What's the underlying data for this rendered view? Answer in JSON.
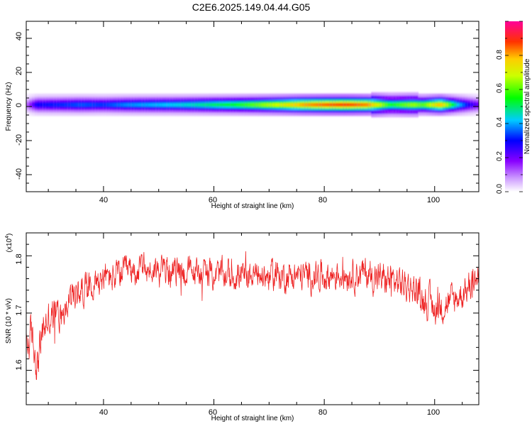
{
  "title": "C2E6.2025.149.04.44.G05",
  "chart_data": [
    {
      "type": "heatmap",
      "xlabel": "Height of straight line (km)",
      "ylabel": "Frequency (Hz)",
      "xlim": [
        26,
        108
      ],
      "ylim": [
        -50,
        50
      ],
      "xticks": [
        "40",
        "60",
        "80",
        "100"
      ],
      "yticks": [
        "-40",
        "-20",
        "0",
        "20",
        "40"
      ],
      "band_frequency_hz": 1,
      "band_peak_amplitude": [
        [
          26,
          0.1
        ],
        [
          28,
          0.3
        ],
        [
          32,
          0.32
        ],
        [
          36,
          0.35
        ],
        [
          40,
          0.33
        ],
        [
          44,
          0.38
        ],
        [
          48,
          0.4
        ],
        [
          52,
          0.42
        ],
        [
          56,
          0.45
        ],
        [
          60,
          0.5
        ],
        [
          64,
          0.55
        ],
        [
          68,
          0.62
        ],
        [
          72,
          0.7
        ],
        [
          76,
          0.8
        ],
        [
          80,
          0.85
        ],
        [
          84,
          0.88
        ],
        [
          88,
          0.82
        ],
        [
          92,
          0.55
        ],
        [
          96,
          0.65
        ],
        [
          98,
          0.6
        ],
        [
          101,
          0.8
        ],
        [
          104,
          0.45
        ],
        [
          106,
          0.3
        ],
        [
          108,
          0.2
        ]
      ],
      "colorbar": {
        "label": "Normalized spectral amplitude",
        "range": [
          0,
          1
        ],
        "ticks": [
          "0.0",
          "0.2",
          "0.4",
          "0.6",
          "0.8"
        ]
      }
    },
    {
      "type": "line",
      "xlabel": "Height of straight line (km)",
      "ylabel": "SNR (10 * v/v)",
      "y_multiplier": "(x10",
      "y_multiplier_exp": "4",
      "xlim": [
        26,
        108
      ],
      "ylim": [
        1.54,
        1.84
      ],
      "xticks": [
        "40",
        "60",
        "80",
        "100"
      ],
      "yticks": [
        "1.6",
        "1.7",
        "1.8"
      ],
      "color": "#ee2222",
      "trend": [
        [
          26,
          1.64
        ],
        [
          27,
          1.66
        ],
        [
          28,
          1.61
        ],
        [
          29,
          1.67
        ],
        [
          30,
          1.69
        ],
        [
          32,
          1.7
        ],
        [
          34,
          1.72
        ],
        [
          36,
          1.74
        ],
        [
          38,
          1.755
        ],
        [
          40,
          1.76
        ],
        [
          42,
          1.765
        ],
        [
          44,
          1.77
        ],
        [
          46,
          1.775
        ],
        [
          50,
          1.775
        ],
        [
          55,
          1.772
        ],
        [
          60,
          1.768
        ],
        [
          65,
          1.765
        ],
        [
          70,
          1.765
        ],
        [
          75,
          1.765
        ],
        [
          80,
          1.765
        ],
        [
          85,
          1.77
        ],
        [
          88,
          1.768
        ],
        [
          90,
          1.76
        ],
        [
          93,
          1.755
        ],
        [
          96,
          1.745
        ],
        [
          98,
          1.725
        ],
        [
          100,
          1.71
        ],
        [
          102,
          1.715
        ],
        [
          104,
          1.725
        ],
        [
          106,
          1.745
        ],
        [
          108,
          1.76
        ]
      ],
      "noise": [
        [
          26,
          0.03
        ],
        [
          30,
          0.025
        ],
        [
          36,
          0.02
        ],
        [
          50,
          0.02
        ],
        [
          70,
          0.02
        ],
        [
          90,
          0.022
        ],
        [
          100,
          0.022
        ],
        [
          108,
          0.02
        ]
      ]
    }
  ]
}
